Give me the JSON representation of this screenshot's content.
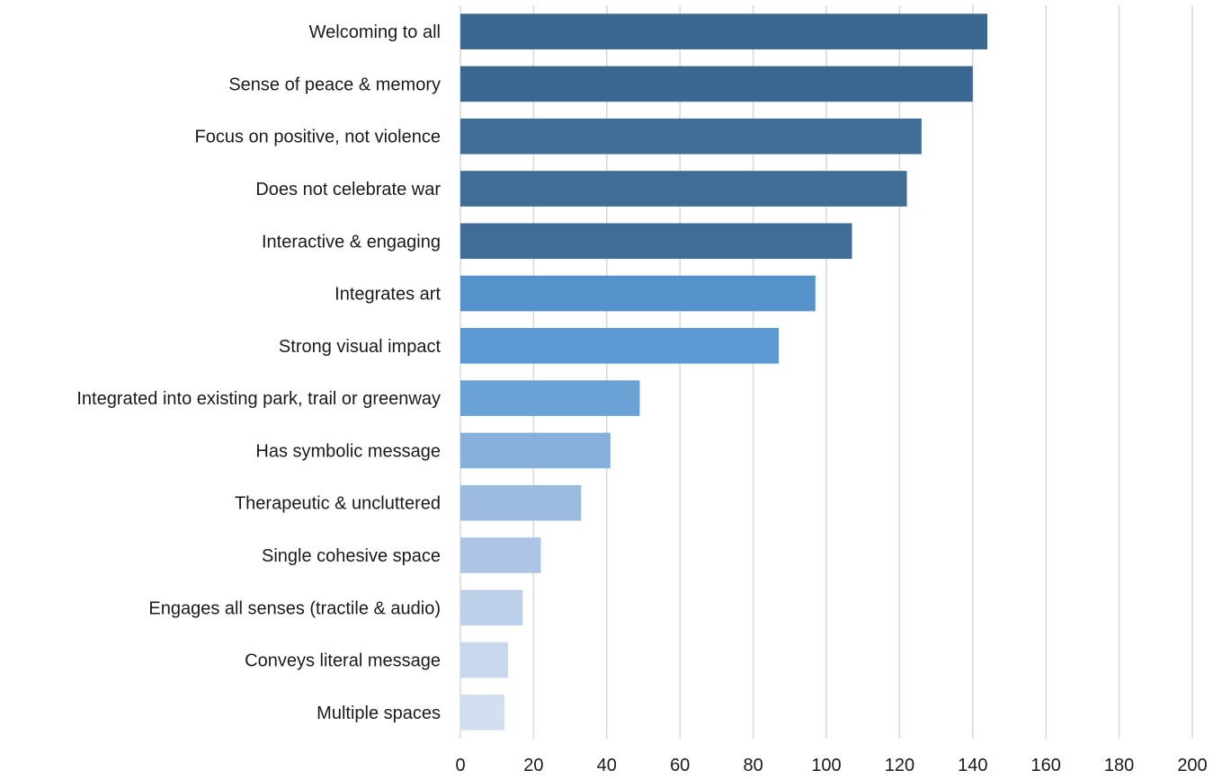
{
  "chart_data": {
    "type": "bar",
    "orientation": "horizontal",
    "title": "",
    "xlabel": "",
    "ylabel": "",
    "xlim": [
      0,
      200
    ],
    "xticks": [
      0,
      20,
      40,
      60,
      80,
      100,
      120,
      140,
      160,
      180,
      200
    ],
    "grid": "vertical",
    "legend": "none",
    "categories": [
      "Welcoming to all",
      "Sense of peace & memory",
      "Focus on positive, not violence",
      "Does not celebrate war",
      "Interactive & engaging",
      "Integrates art",
      "Strong visual impact",
      "Integrated into existing park, trail or greenway",
      "Has symbolic message",
      "Therapeutic & uncluttered",
      "Single cohesive space",
      "Engages all senses (tractile & audio)",
      "Conveys literal message",
      "Multiple spaces"
    ],
    "values": [
      144,
      140,
      126,
      122,
      107,
      97,
      87,
      49,
      41,
      33,
      22,
      17,
      13,
      12
    ],
    "colors": [
      "#3a6890",
      "#3a6890",
      "#3f6d96",
      "#3f6d96",
      "#3f6d96",
      "#5592cb",
      "#5a99d3",
      "#6aa2d6",
      "#86afdc",
      "#9dbbe1",
      "#acc5e6",
      "#bcd0ea",
      "#c7d7ed",
      "#d2dff0"
    ]
  }
}
